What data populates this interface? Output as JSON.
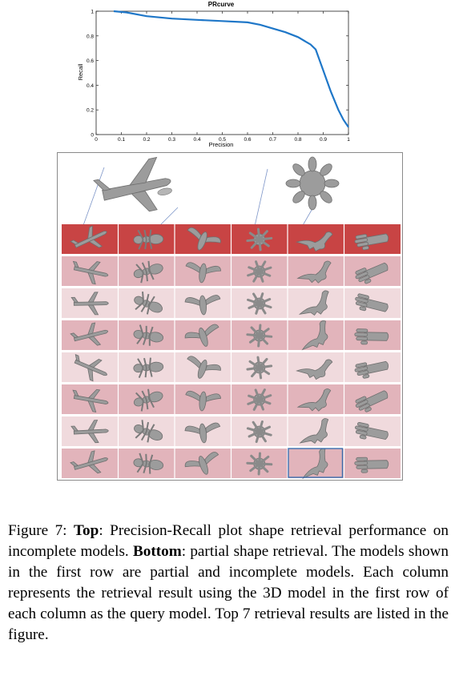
{
  "chart_data": {
    "type": "line",
    "title": "PRcurve",
    "xlabel": "Precision",
    "ylabel": "Recall",
    "xlim": [
      0,
      1
    ],
    "ylim": [
      0,
      1
    ],
    "x_ticks": [
      "0",
      "0.1",
      "0.2",
      "0.3",
      "0.4",
      "0.5",
      "0.6",
      "0.7",
      "0.8",
      "0.9",
      "1"
    ],
    "y_ticks": [
      "0",
      "0.2",
      "0.4",
      "0.6",
      "0.8",
      "1"
    ],
    "grid": false,
    "series": [
      {
        "color": "#1f77c8",
        "x": [
          0.07,
          0.12,
          0.2,
          0.3,
          0.4,
          0.5,
          0.6,
          0.65,
          0.7,
          0.75,
          0.8,
          0.85,
          0.87,
          0.9,
          0.93,
          0.96,
          0.98,
          1.0
        ],
        "y": [
          1.0,
          0.99,
          0.96,
          0.94,
          0.93,
          0.92,
          0.91,
          0.89,
          0.86,
          0.83,
          0.79,
          0.73,
          0.69,
          0.52,
          0.35,
          0.2,
          0.12,
          0.06
        ]
      }
    ]
  },
  "figure": {
    "query_models": [
      "airplane",
      "ant",
      "bird",
      "octopus",
      "dinosaur",
      "hand"
    ],
    "results_count": 7,
    "colors": {
      "query_row": "#c84444",
      "row_dark": "#e2b4bb",
      "row_light": "#f0dadd",
      "highlight": "#3c6fb0"
    }
  },
  "caption": {
    "label": "Figure 7:",
    "top_label": "Top",
    "top_text": ": Precision-Recall plot shape retrieval performance on incomplete models.",
    "bottom_label": "Bottom",
    "bottom_text": ": partial shape retrieval. The models shown in the first row are partial and incomplete models. Each column represents the retrieval result using the 3D model in the first row of each column as the query model. Top 7 retrieval results are listed in the figure."
  }
}
